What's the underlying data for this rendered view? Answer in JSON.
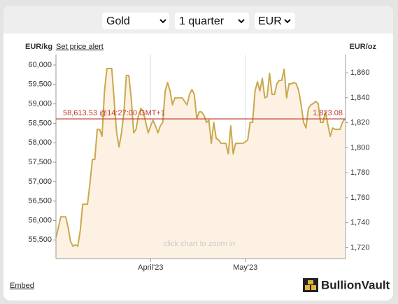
{
  "controls": {
    "metal": "Gold",
    "period": "1 quarter",
    "currency": "EUR"
  },
  "chart_data": {
    "type": "line",
    "y_label": "EUR/kg",
    "y2_label": "EUR/oz",
    "price_alert_link": "Set price alert",
    "watermark": "BullionVault",
    "hint": "click chart to zoom in",
    "color": "#c9a94c",
    "fill_color": "#fdf1e3",
    "categories": [
      null,
      null,
      null,
      null,
      null,
      null,
      null,
      null,
      null,
      null,
      null,
      null,
      null,
      null,
      null,
      null,
      null,
      null,
      null,
      null,
      null,
      null,
      null,
      null,
      null,
      null,
      null,
      null,
      null,
      null,
      null,
      null,
      null,
      null,
      null,
      null,
      null,
      null,
      null,
      "April'23",
      null,
      null,
      null,
      null,
      null,
      null,
      null,
      null,
      null,
      null,
      null,
      null,
      null,
      null,
      null,
      null,
      null,
      null,
      null,
      null,
      null,
      null,
      null,
      null,
      null,
      null,
      null,
      null,
      null,
      null,
      null,
      null,
      null,
      null,
      null,
      null,
      null,
      null,
      "May'23",
      null,
      null,
      null,
      null,
      null,
      null,
      null,
      null,
      null,
      null,
      null,
      null,
      null,
      null,
      null,
      null,
      null,
      null,
      null,
      null,
      null,
      null,
      null,
      null,
      null,
      null,
      null,
      null,
      null,
      null,
      null,
      null,
      null,
      null,
      null,
      null,
      null,
      null,
      null,
      null,
      null
    ],
    "values": [
      55554,
      55824,
      56094,
      56094,
      56094,
      55824,
      55464,
      55338,
      55374,
      55338,
      55734,
      56418,
      56418,
      56418,
      56958,
      57570,
      57570,
      58344,
      58344,
      58164,
      59334,
      59910,
      59910,
      59910,
      59064,
      58254,
      57894,
      58254,
      58794,
      59730,
      59730,
      59154,
      58254,
      58344,
      58704,
      58884,
      58794,
      58524,
      58254,
      58434,
      58578,
      58434,
      58254,
      58434,
      58524,
      59334,
      59550,
      59334,
      58974,
      59154,
      59154,
      59154,
      59154,
      59064,
      58974,
      59244,
      59370,
      59244,
      58614,
      58794,
      58794,
      58704,
      58524,
      58578,
      57984,
      58524,
      58110,
      58074,
      57984,
      57984,
      57984,
      57714,
      58434,
      57714,
      57984,
      57984,
      57984,
      57984,
      58020,
      58074,
      58524,
      58524,
      59334,
      59568,
      59334,
      59658,
      59154,
      59190,
      59784,
      59244,
      59244,
      59514,
      59604,
      59604,
      59892,
      59154,
      59514,
      59514,
      59550,
      59514,
      59334,
      58974,
      58524,
      58380,
      58884,
      58974,
      59010,
      59064,
      59010,
      58524,
      58524,
      58794,
      58470,
      58164,
      58380,
      58344,
      58344,
      58344,
      58524,
      58614
    ],
    "ylim": [
      55020,
      60270
    ],
    "yticks": [
      {
        "value": 55500,
        "label": "55,500"
      },
      {
        "value": 56000,
        "label": "56,000"
      },
      {
        "value": 56500,
        "label": "56,500"
      },
      {
        "value": 57000,
        "label": "57,000"
      },
      {
        "value": 57500,
        "label": "57,500"
      },
      {
        "value": 58000,
        "label": "58,000"
      },
      {
        "value": 58500,
        "label": "58,500"
      },
      {
        "value": 59000,
        "label": "59,000"
      },
      {
        "value": 59500,
        "label": "59,500"
      },
      {
        "value": 60000,
        "label": "60,000"
      }
    ],
    "y2lim": [
      1711.3,
      1874.6
    ],
    "y2ticks": [
      {
        "value": 1720,
        "label": "1,720"
      },
      {
        "value": 1740,
        "label": "1,740"
      },
      {
        "value": 1760,
        "label": "1,760"
      },
      {
        "value": 1780,
        "label": "1,780"
      },
      {
        "value": 1800,
        "label": "1,800"
      },
      {
        "value": 1820,
        "label": "1,820"
      },
      {
        "value": 1840,
        "label": "1,840"
      },
      {
        "value": 1860,
        "label": "1,860"
      }
    ],
    "price_line": {
      "value": 58613.53,
      "label": "58,613.53 @14:27:00 GMT+1",
      "y2_value": 1823.08,
      "y2_label": "1,823.08",
      "color": "#c0392b"
    }
  },
  "footer": {
    "embed": "Embed",
    "logo": "BullionVault"
  }
}
